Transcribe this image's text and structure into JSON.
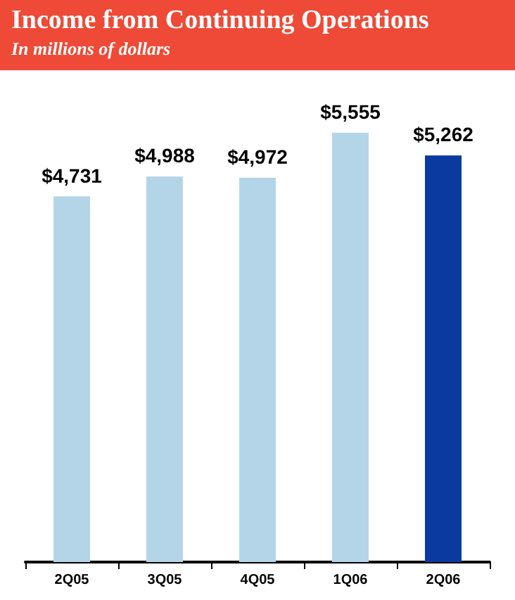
{
  "chart_data": {
    "type": "bar",
    "title": "Income from Continuing Operations",
    "subtitle": "In millions of dollars",
    "categories": [
      "2Q05",
      "3Q05",
      "4Q05",
      "1Q06",
      "2Q06"
    ],
    "values": [
      4731,
      4988,
      4972,
      5555,
      5262
    ],
    "colors": [
      "#b4d5e8",
      "#b4d5e8",
      "#b4d5e8",
      "#b4d5e8",
      "#0a3aa0"
    ],
    "value_labels": [
      "$4,731",
      "$4,988",
      "$4,972",
      "$5,555",
      "$5,262"
    ]
  }
}
